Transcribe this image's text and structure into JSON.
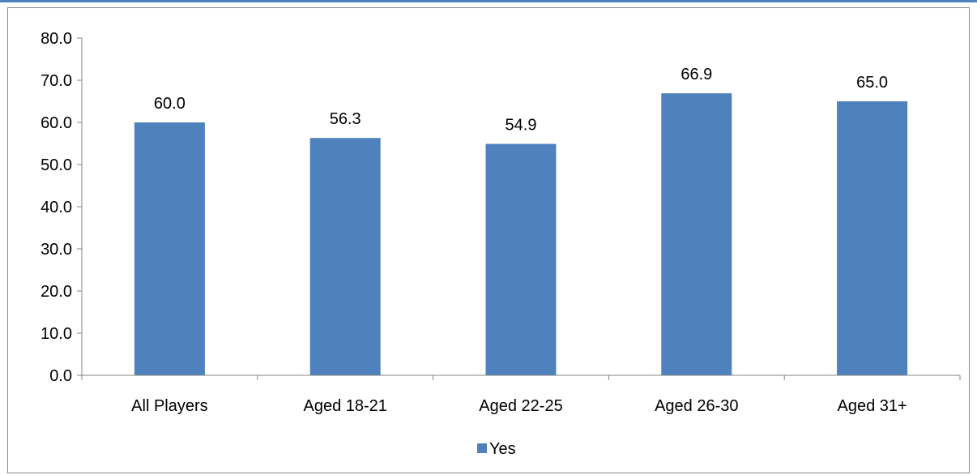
{
  "chart_data": {
    "type": "bar",
    "categories": [
      "All Players",
      "Aged 18-21",
      "Aged 22-25",
      "Aged 26-30",
      "Aged 31+"
    ],
    "series": [
      {
        "name": "Yes",
        "values": [
          60.0,
          56.3,
          54.9,
          66.9,
          65.0
        ],
        "color": "#4f81bd"
      }
    ],
    "data_labels": [
      "60.0",
      "56.3",
      "54.9",
      "66.9",
      "65.0"
    ],
    "y_ticks": [
      "0.0",
      "10.0",
      "20.0",
      "30.0",
      "40.0",
      "50.0",
      "60.0",
      "70.0",
      "80.0"
    ],
    "ylim": [
      0,
      80
    ],
    "title": "",
    "xlabel": "",
    "ylabel": "",
    "grid": false,
    "legend_position": "bottom"
  },
  "colors": {
    "accent": "#4f81bd",
    "axis": "#868686"
  }
}
